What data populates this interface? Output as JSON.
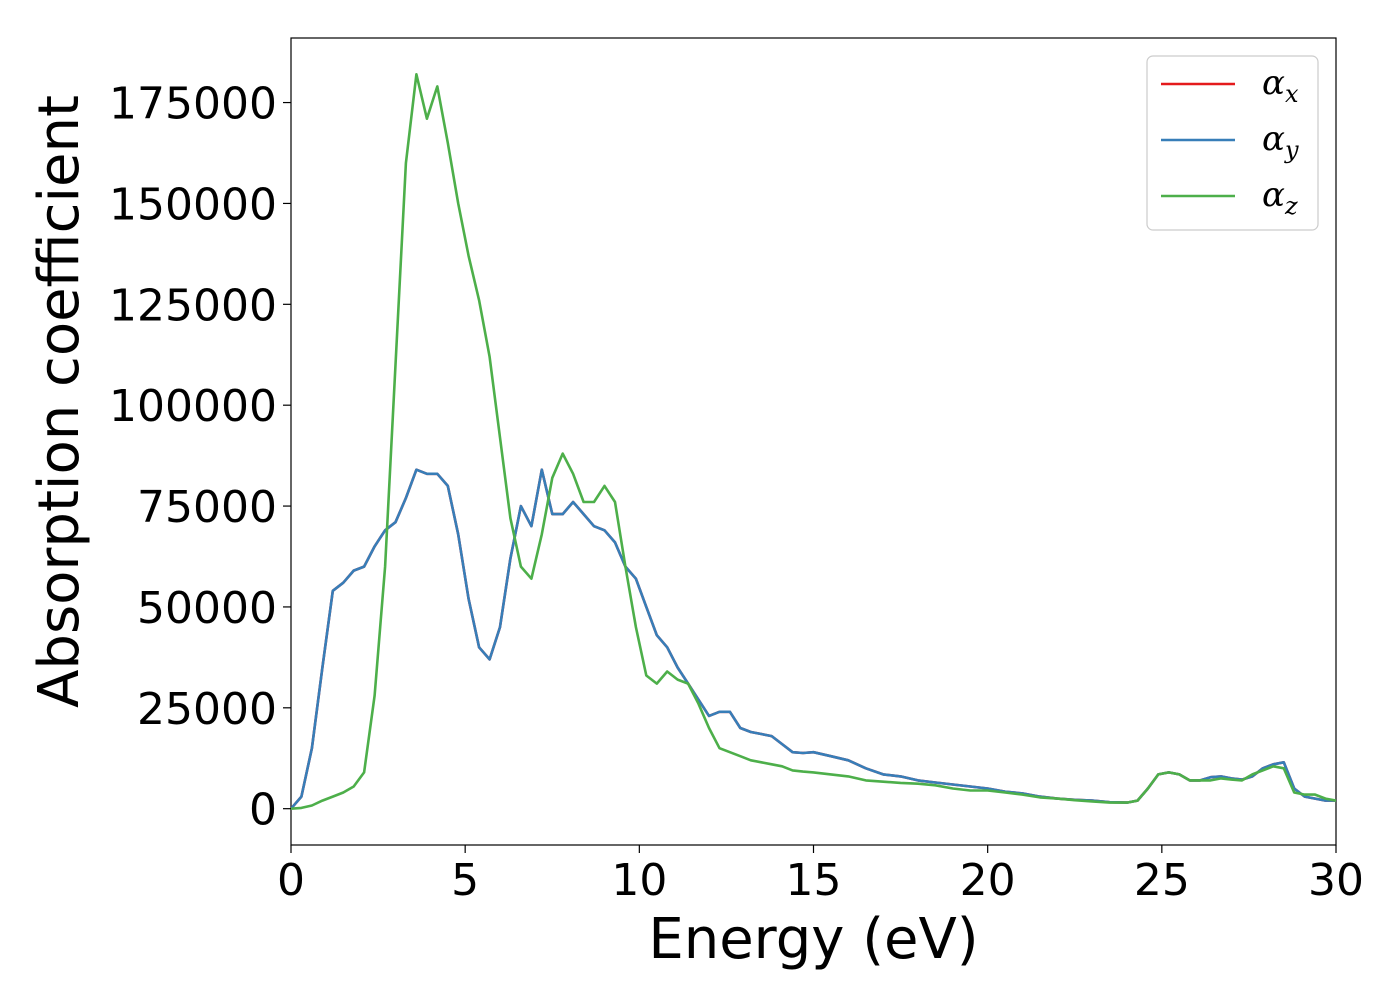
{
  "chart_data": {
    "type": "line",
    "title": "",
    "xlabel": "Energy (eV)",
    "ylabel": "Absorption coefficient",
    "xlim": [
      0,
      30
    ],
    "ylim": [
      -9000,
      191000
    ],
    "xticks": [
      0,
      5,
      10,
      15,
      20,
      25,
      30
    ],
    "yticks": [
      0,
      25000,
      50000,
      75000,
      100000,
      125000,
      150000,
      175000
    ],
    "grid": false,
    "legend_position": "top-right",
    "series": [
      {
        "name": "α",
        "subscript": "x",
        "color": "#e41a1c",
        "x": [
          0,
          0.3,
          0.6,
          0.9,
          1.2,
          1.5,
          1.8,
          2.1,
          2.4,
          2.7,
          3.0,
          3.3,
          3.6,
          3.9,
          4.2,
          4.5,
          4.8,
          5.1,
          5.4,
          5.7,
          6.0,
          6.3,
          6.6,
          6.9,
          7.2,
          7.5,
          7.8,
          8.1,
          8.4,
          8.7,
          9.0,
          9.3,
          9.6,
          9.9,
          10.2,
          10.5,
          10.8,
          11.1,
          11.4,
          11.7,
          12.0,
          12.3,
          12.6,
          12.9,
          13.2,
          13.5,
          13.8,
          14.1,
          14.4,
          14.7,
          15.0,
          15.5,
          16.0,
          16.5,
          17.0,
          17.5,
          18.0,
          18.5,
          19.0,
          19.5,
          20.0,
          20.5,
          21.0,
          21.5,
          22.0,
          22.5,
          23.0,
          23.5,
          24.0,
          24.3,
          24.6,
          24.9,
          25.2,
          25.5,
          25.8,
          26.1,
          26.4,
          26.7,
          27.0,
          27.3,
          27.6,
          27.9,
          28.2,
          28.5,
          28.8,
          29.1,
          29.4,
          29.7,
          30.0
        ],
        "values": [
          0,
          3000,
          15000,
          35000,
          54000,
          56000,
          59000,
          60000,
          65000,
          69000,
          71000,
          77000,
          84000,
          83000,
          83000,
          80000,
          68000,
          52000,
          40000,
          37000,
          45000,
          62000,
          75000,
          70000,
          84000,
          73000,
          73000,
          76000,
          73000,
          70000,
          69000,
          66000,
          60000,
          57000,
          50000,
          43000,
          40000,
          35000,
          31000,
          27000,
          23000,
          24000,
          24000,
          20000,
          19000,
          18500,
          18000,
          16000,
          14000,
          13800,
          14000,
          13000,
          12000,
          10000,
          8500,
          8000,
          7000,
          6500,
          6000,
          5500,
          5000,
          4200,
          3800,
          3000,
          2500,
          2200,
          2000,
          1600,
          1500,
          2000,
          5000,
          8500,
          9000,
          8500,
          7000,
          7000,
          7800,
          8000,
          7500,
          7200,
          8000,
          10000,
          11000,
          11500,
          5000,
          3000,
          2500,
          2000,
          2000
        ]
      },
      {
        "name": "α",
        "subscript": "y",
        "color": "#377eb8",
        "x": [
          0,
          0.3,
          0.6,
          0.9,
          1.2,
          1.5,
          1.8,
          2.1,
          2.4,
          2.7,
          3.0,
          3.3,
          3.6,
          3.9,
          4.2,
          4.5,
          4.8,
          5.1,
          5.4,
          5.7,
          6.0,
          6.3,
          6.6,
          6.9,
          7.2,
          7.5,
          7.8,
          8.1,
          8.4,
          8.7,
          9.0,
          9.3,
          9.6,
          9.9,
          10.2,
          10.5,
          10.8,
          11.1,
          11.4,
          11.7,
          12.0,
          12.3,
          12.6,
          12.9,
          13.2,
          13.5,
          13.8,
          14.1,
          14.4,
          14.7,
          15.0,
          15.5,
          16.0,
          16.5,
          17.0,
          17.5,
          18.0,
          18.5,
          19.0,
          19.5,
          20.0,
          20.5,
          21.0,
          21.5,
          22.0,
          22.5,
          23.0,
          23.5,
          24.0,
          24.3,
          24.6,
          24.9,
          25.2,
          25.5,
          25.8,
          26.1,
          26.4,
          26.7,
          27.0,
          27.3,
          27.6,
          27.9,
          28.2,
          28.5,
          28.8,
          29.1,
          29.4,
          29.7,
          30.0
        ],
        "values": [
          0,
          3000,
          15000,
          35000,
          54000,
          56000,
          59000,
          60000,
          65000,
          69000,
          71000,
          77000,
          84000,
          83000,
          83000,
          80000,
          68000,
          52000,
          40000,
          37000,
          45000,
          62000,
          75000,
          70000,
          84000,
          73000,
          73000,
          76000,
          73000,
          70000,
          69000,
          66000,
          60000,
          57000,
          50000,
          43000,
          40000,
          35000,
          31000,
          27000,
          23000,
          24000,
          24000,
          20000,
          19000,
          18500,
          18000,
          16000,
          14000,
          13800,
          14000,
          13000,
          12000,
          10000,
          8500,
          8000,
          7000,
          6500,
          6000,
          5500,
          5000,
          4200,
          3800,
          3000,
          2500,
          2200,
          2000,
          1600,
          1500,
          2000,
          5000,
          8500,
          9000,
          8500,
          7000,
          7000,
          7800,
          8000,
          7500,
          7200,
          8000,
          10000,
          11000,
          11500,
          5000,
          3000,
          2500,
          2000,
          2000
        ]
      },
      {
        "name": "α",
        "subscript": "z",
        "color": "#4daf4a",
        "x": [
          0,
          0.3,
          0.6,
          0.9,
          1.2,
          1.5,
          1.8,
          2.1,
          2.4,
          2.7,
          3.0,
          3.3,
          3.6,
          3.9,
          4.2,
          4.5,
          4.8,
          5.1,
          5.4,
          5.7,
          6.0,
          6.3,
          6.6,
          6.9,
          7.2,
          7.5,
          7.8,
          8.1,
          8.4,
          8.7,
          9.0,
          9.3,
          9.6,
          9.9,
          10.2,
          10.5,
          10.8,
          11.1,
          11.4,
          11.7,
          12.0,
          12.3,
          12.6,
          12.9,
          13.2,
          13.5,
          13.8,
          14.1,
          14.4,
          14.7,
          15.0,
          15.5,
          16.0,
          16.5,
          17.0,
          17.5,
          18.0,
          18.5,
          19.0,
          19.5,
          20.0,
          20.5,
          21.0,
          21.5,
          22.0,
          22.5,
          23.0,
          23.5,
          24.0,
          24.3,
          24.6,
          24.9,
          25.2,
          25.5,
          25.8,
          26.1,
          26.4,
          26.7,
          27.0,
          27.3,
          27.6,
          27.9,
          28.2,
          28.5,
          28.8,
          29.1,
          29.4,
          29.7,
          30.0
        ],
        "values": [
          0,
          200,
          800,
          2000,
          3000,
          4000,
          5500,
          9000,
          28000,
          60000,
          110000,
          160000,
          182000,
          171000,
          179000,
          165000,
          150000,
          137000,
          126000,
          112000,
          92000,
          72000,
          60000,
          57000,
          68000,
          82000,
          88000,
          83000,
          76000,
          76000,
          80000,
          76000,
          60000,
          45000,
          33000,
          31000,
          34000,
          32000,
          31000,
          26000,
          20000,
          15000,
          14000,
          13000,
          12000,
          11500,
          11000,
          10500,
          9500,
          9200,
          9000,
          8500,
          8000,
          7000,
          6700,
          6400,
          6200,
          5800,
          5000,
          4500,
          4500,
          4000,
          3500,
          2800,
          2500,
          2100,
          1800,
          1500,
          1500,
          2000,
          5000,
          8500,
          9000,
          8500,
          7000,
          7000,
          7000,
          7500,
          7200,
          7000,
          8500,
          9500,
          10500,
          10000,
          4000,
          3500,
          3500,
          2500,
          2000
        ]
      }
    ]
  }
}
